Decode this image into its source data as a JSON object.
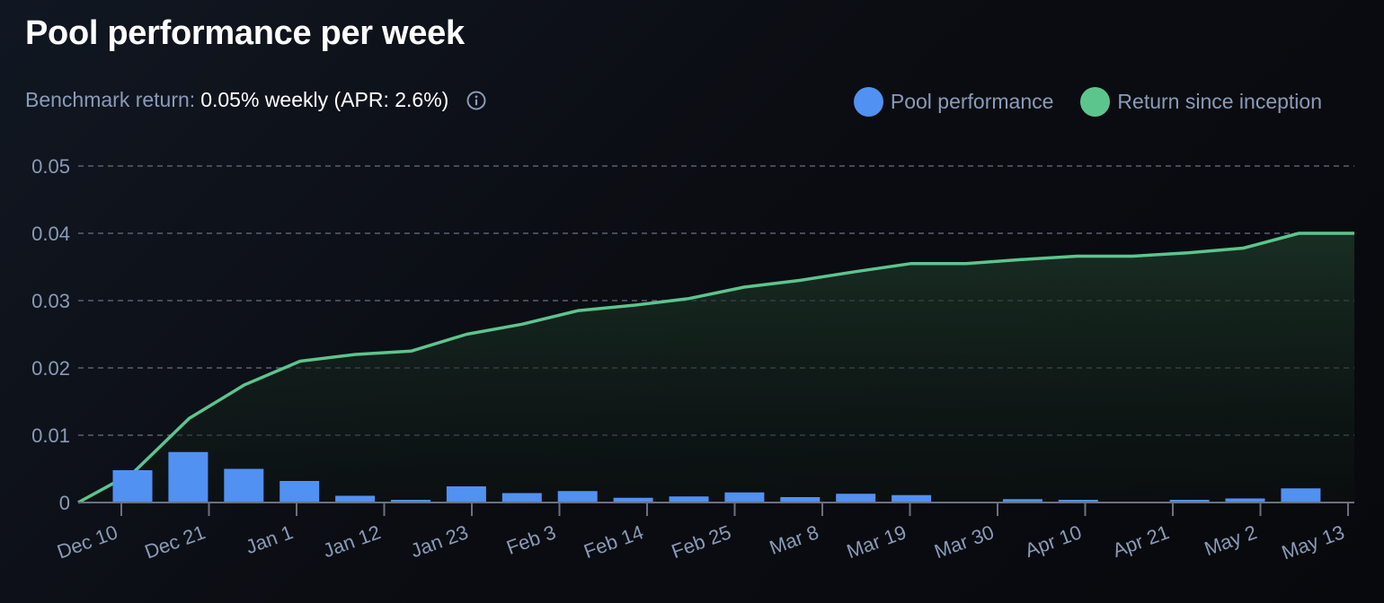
{
  "title": "Pool performance per week",
  "benchmark": {
    "label": "Benchmark return:",
    "value": "0.05% weekly (APR: 2.6%)",
    "info_icon": "info-circle-icon"
  },
  "colors": {
    "bar": "#5191f2",
    "line": "#5cc58e",
    "grid": "#5a6072",
    "axis": "#6b7180",
    "text": "#8a9bb8"
  },
  "chart_data": {
    "type": "bar+area",
    "title": "Pool performance per week",
    "xlabel": "",
    "ylabel": "",
    "ylim": [
      0,
      0.05
    ],
    "yticks": [
      "0.05",
      "0.04",
      "0.03",
      "0.02",
      "0.01",
      "0"
    ],
    "ytick_values": [
      0.05,
      0.04,
      0.03,
      0.02,
      0.01,
      0
    ],
    "grid": true,
    "legend_position": "top-right",
    "x_tick_labels": [
      "Dec 10",
      "Dec 21",
      "Jan 1",
      "Jan 12",
      "Jan 23",
      "Feb 3",
      "Feb 14",
      "Feb 25",
      "Mar 8",
      "Mar 19",
      "Mar 30",
      "Apr 10",
      "Apr 21",
      "May 2",
      "May 13"
    ],
    "series": [
      {
        "name": "Pool performance",
        "type": "bar",
        "values": [
          0.0048,
          0.0075,
          0.005,
          0.0032,
          0.001,
          0.0004,
          0.0024,
          0.0014,
          0.0017,
          0.0007,
          0.0009,
          0.0015,
          0.0008,
          0.0013,
          0.0011,
          0.0,
          0.0005,
          0.0004,
          0.0,
          0.0004,
          0.0006,
          0.0021
        ]
      },
      {
        "name": "Return since inception",
        "type": "area",
        "values": [
          0.0,
          0.0045,
          0.0125,
          0.0175,
          0.021,
          0.022,
          0.0225,
          0.025,
          0.0265,
          0.0285,
          0.0293,
          0.0303,
          0.032,
          0.033,
          0.0343,
          0.0355,
          0.0355,
          0.0361,
          0.0366,
          0.0366,
          0.0371,
          0.0378,
          0.04,
          0.04
        ]
      }
    ]
  },
  "legend": [
    {
      "label": "Pool performance",
      "color": "#5191f2"
    },
    {
      "label": "Return since inception",
      "color": "#5cc58e"
    }
  ]
}
